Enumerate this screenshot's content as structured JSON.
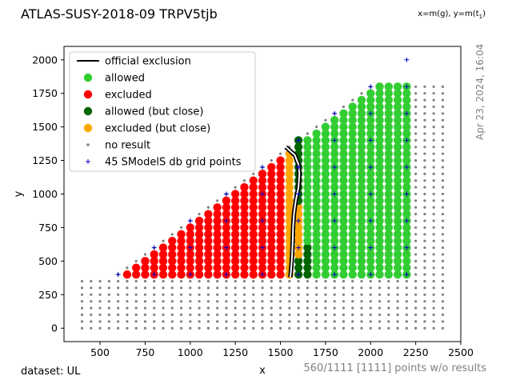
{
  "header": {
    "title": "ATLAS-SUSY-2018-09 TRPV5tjb",
    "axis_mapping_x": "x=m(",
    "axis_mapping_y": "), y=m(",
    "axis_mapping_end": ")",
    "gluino_symbol": "g",
    "stop_symbol": "t",
    "stop_subscript": "1"
  },
  "footer": {
    "dataset": "dataset: UL",
    "points_without_results": "560/1111 [1111] points w/o results",
    "timestamp": "Apr 23, 2024, 16:04"
  },
  "colors": {
    "allowed": "#32cd32",
    "excluded": "#ff0000",
    "allowed_close": "#006400",
    "excluded_close": "#ffa500",
    "no_result": "#808080",
    "grid_points": "#0000cd",
    "exclusion_line": "#000000"
  },
  "chart_data": {
    "type": "scatter",
    "xlabel": "x",
    "ylabel": "y",
    "xlim": [
      300,
      2500
    ],
    "ylim": [
      -100,
      2100
    ],
    "x_ticks": [
      500,
      750,
      1000,
      1250,
      1500,
      1750,
      2000,
      2250,
      2500
    ],
    "y_ticks": [
      0,
      250,
      500,
      750,
      1000,
      1250,
      1500,
      1750,
      2000
    ],
    "grid": false,
    "legend_position": "top-left",
    "legend": [
      {
        "label": "official exclusion",
        "kind": "line",
        "color": "#000000"
      },
      {
        "label": "allowed",
        "kind": "dot",
        "color": "#32cd32"
      },
      {
        "label": "excluded",
        "kind": "dot",
        "color": "#ff0000"
      },
      {
        "label": "allowed (but close)",
        "kind": "dot",
        "color": "#006400"
      },
      {
        "label": "excluded (but close)",
        "kind": "dot",
        "color": "#ffa500"
      },
      {
        "label": "no result",
        "kind": "small",
        "color": "#808080"
      },
      {
        "label": "45 SModelS db grid points",
        "kind": "plus",
        "color": "#0000cd"
      }
    ],
    "regions": {
      "step": 50,
      "no_result_grid": {
        "x_from": 400,
        "x_to": 2400,
        "y_from": 0,
        "y_to": 2000,
        "upper_edge": "y <= x - 200 and y <= 1800, rows y < 400 everywhere"
      },
      "excluded": {
        "x_from": 600,
        "x_to": 1500,
        "y_from": 400,
        "y_to": "x - 250"
      },
      "excluded_close": [
        [
          1550,
          400,
          1300
        ],
        [
          1600,
          650,
          900
        ],
        [
          1600,
          550,
          600
        ]
      ],
      "allowed_close": [
        [
          1600,
          950,
          1400
        ],
        [
          1600,
          400,
          500
        ],
        [
          1650,
          400,
          600
        ]
      ],
      "allowed": {
        "x_from": 1650,
        "x_to": 2200,
        "y_from": 400,
        "y_to": "min(x - 250, 1800)"
      }
    },
    "grid_points": [
      [
        600,
        400
      ],
      [
        800,
        400
      ],
      [
        800,
        600
      ],
      [
        1000,
        400
      ],
      [
        1000,
        600
      ],
      [
        1000,
        800
      ],
      [
        1200,
        400
      ],
      [
        1200,
        600
      ],
      [
        1200,
        800
      ],
      [
        1200,
        1000
      ],
      [
        1400,
        400
      ],
      [
        1400,
        600
      ],
      [
        1400,
        800
      ],
      [
        1400,
        1000
      ],
      [
        1400,
        1200
      ],
      [
        1600,
        400
      ],
      [
        1600,
        600
      ],
      [
        1600,
        800
      ],
      [
        1600,
        1000
      ],
      [
        1600,
        1200
      ],
      [
        1600,
        1400
      ],
      [
        1800,
        400
      ],
      [
        1800,
        600
      ],
      [
        1800,
        800
      ],
      [
        1800,
        1000
      ],
      [
        1800,
        1200
      ],
      [
        1800,
        1400
      ],
      [
        1800,
        1600
      ],
      [
        2000,
        400
      ],
      [
        2000,
        600
      ],
      [
        2000,
        800
      ],
      [
        2000,
        1000
      ],
      [
        2000,
        1200
      ],
      [
        2000,
        1400
      ],
      [
        2000,
        1600
      ],
      [
        2000,
        1800
      ],
      [
        2200,
        400
      ],
      [
        2200,
        600
      ],
      [
        2200,
        800
      ],
      [
        2200,
        1000
      ],
      [
        2200,
        1200
      ],
      [
        2200,
        1400
      ],
      [
        2200,
        1600
      ],
      [
        2200,
        1800
      ],
      [
        2200,
        2000
      ]
    ],
    "exclusion_curve": [
      [
        1530,
        1350
      ],
      [
        1580,
        1290
      ],
      [
        1600,
        1220
      ],
      [
        1605,
        1150
      ],
      [
        1600,
        1050
      ],
      [
        1585,
        950
      ],
      [
        1575,
        850
      ],
      [
        1570,
        750
      ],
      [
        1568,
        650
      ],
      [
        1565,
        550
      ],
      [
        1560,
        450
      ],
      [
        1555,
        380
      ]
    ]
  }
}
